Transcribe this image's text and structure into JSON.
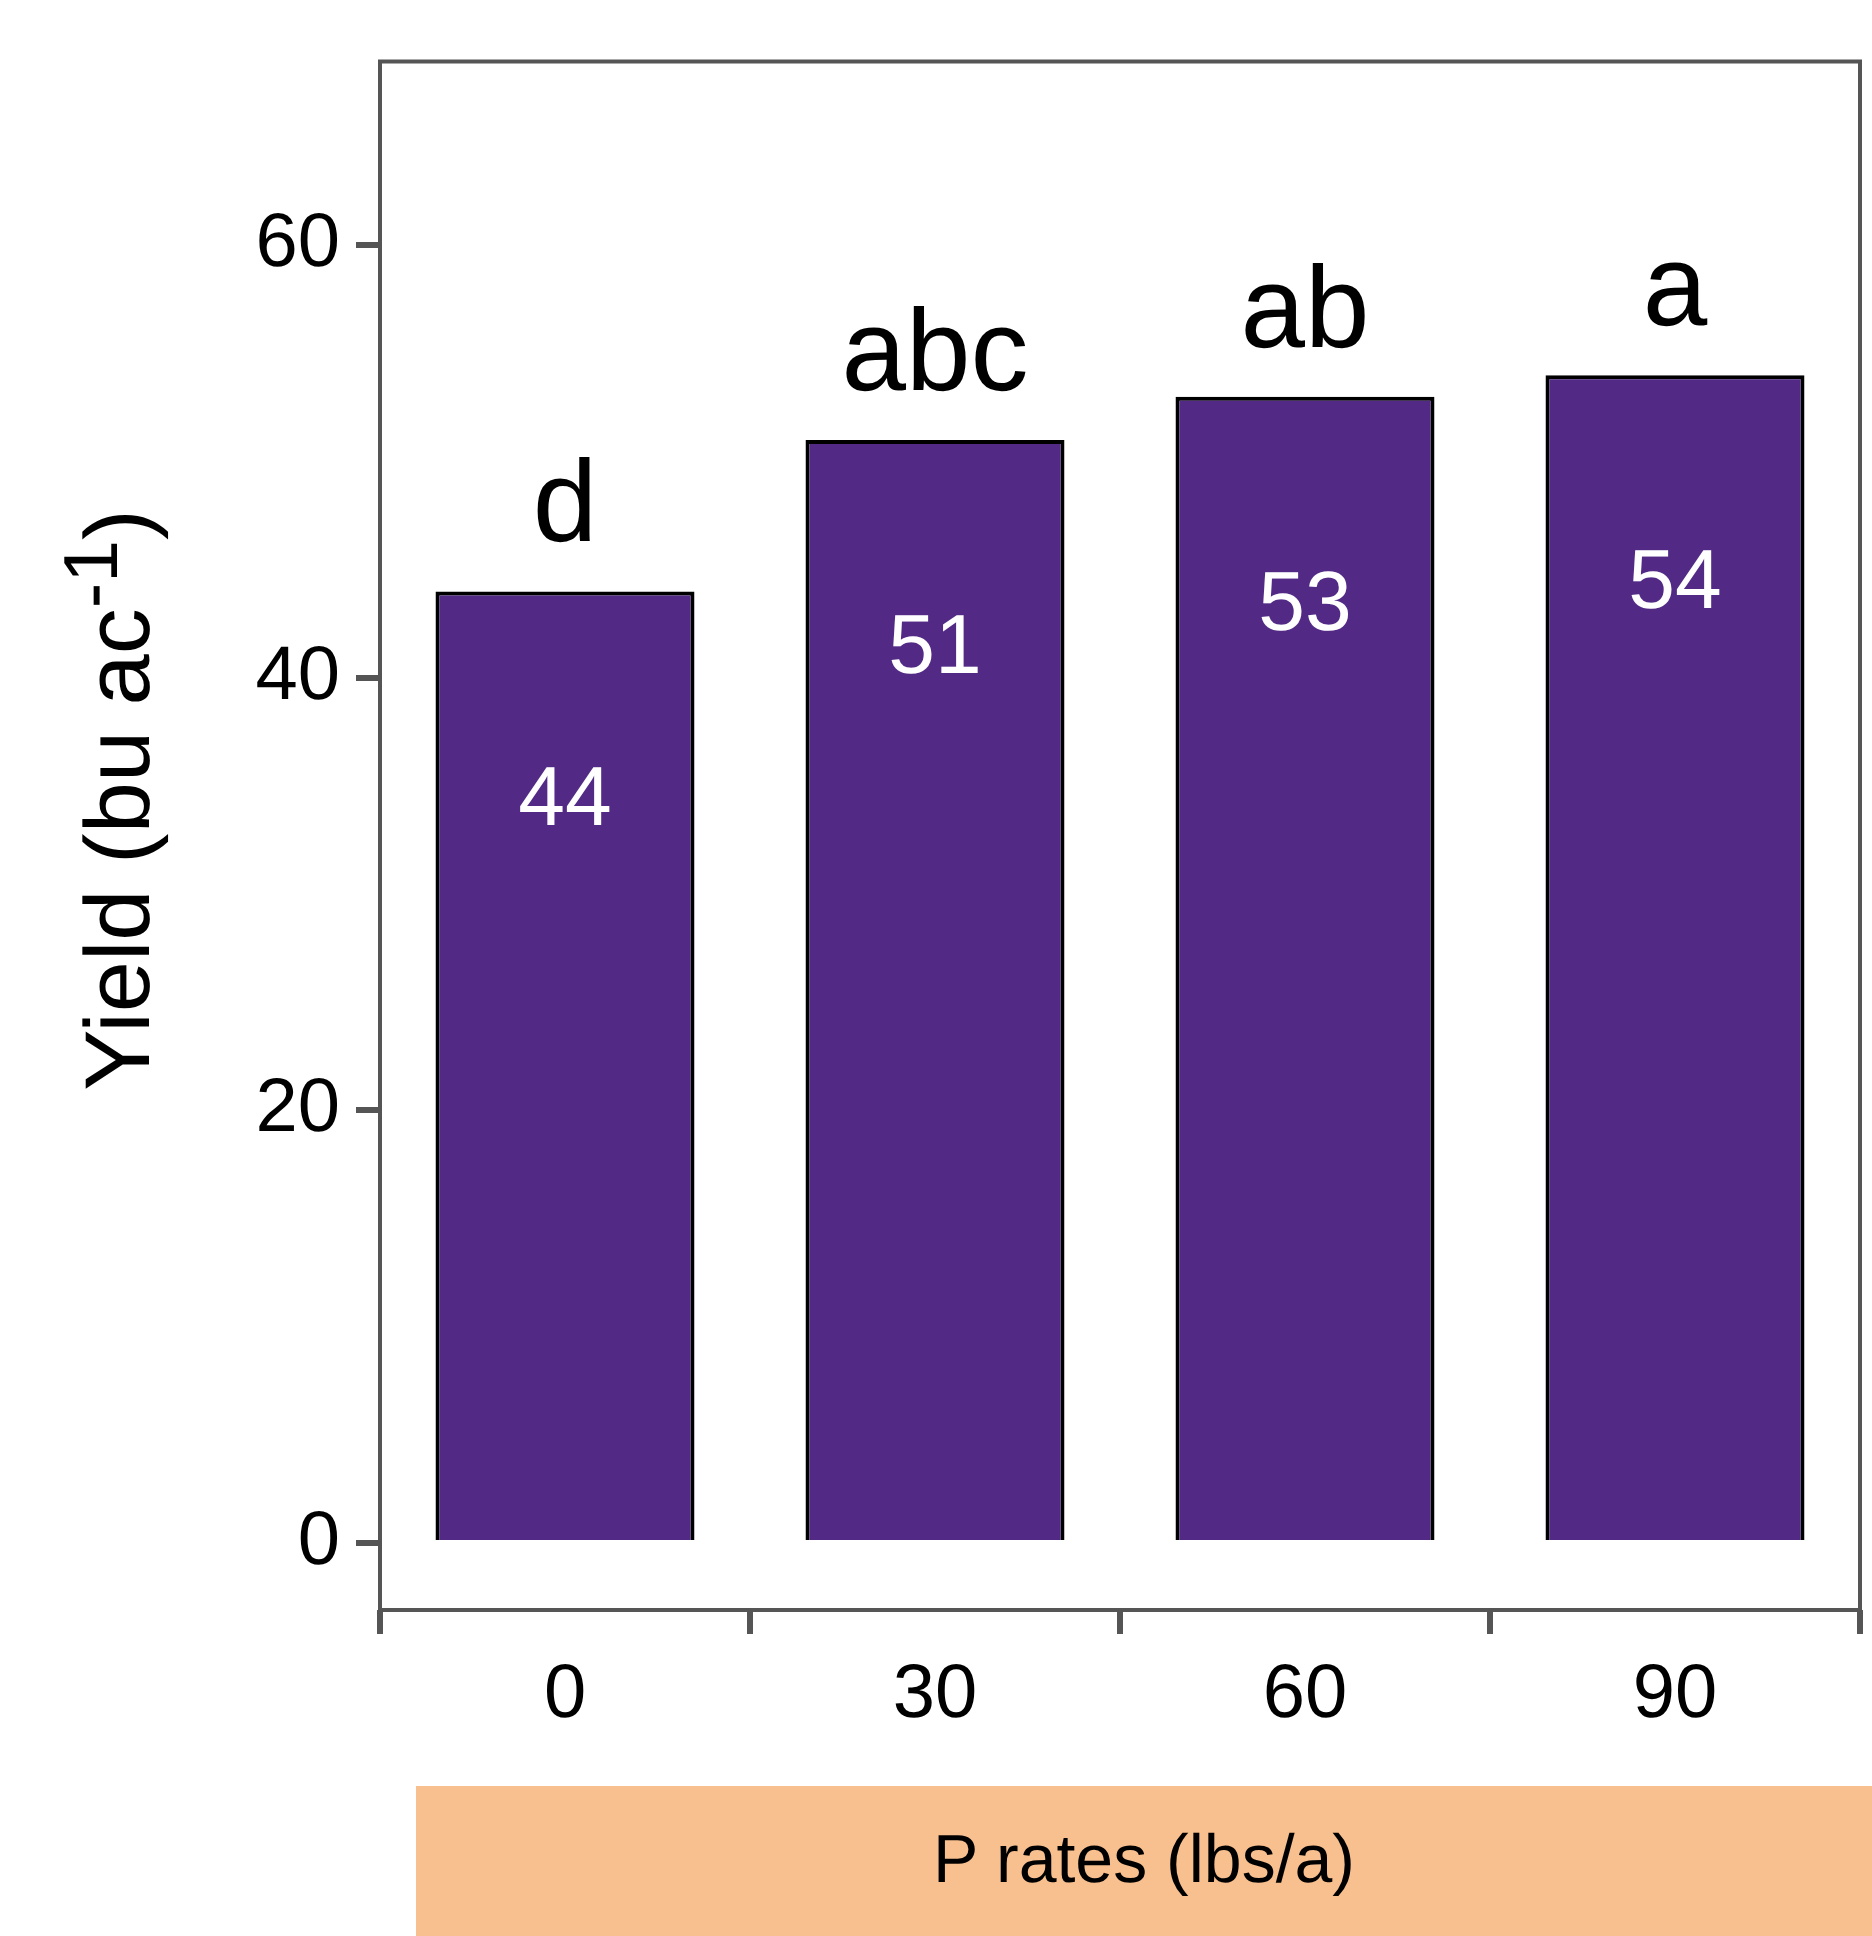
{
  "chart_data": {
    "type": "bar",
    "xlabel": "P rates (lbs/a)",
    "ylabel": "Yield (bu ac$^{-1}$)",
    "categories": [
      "0",
      "30",
      "60",
      "90"
    ],
    "values": [
      44,
      51,
      53,
      54
    ],
    "color": "#522a86",
    "ylim": [
      -3.1,
      68.5
    ],
    "yticks": [
      0,
      20,
      40,
      60
    ],
    "grid": false,
    "legend": false,
    "data_labels": true,
    "annotations": [
      {
        "text": "d",
        "x": "0",
        "y": 44
      },
      {
        "text": "abc",
        "x": "30",
        "y": 51
      },
      {
        "text": "ab",
        "x": "60",
        "y": 53
      },
      {
        "text": "a",
        "x": "90",
        "y": 54
      }
    ]
  }
}
